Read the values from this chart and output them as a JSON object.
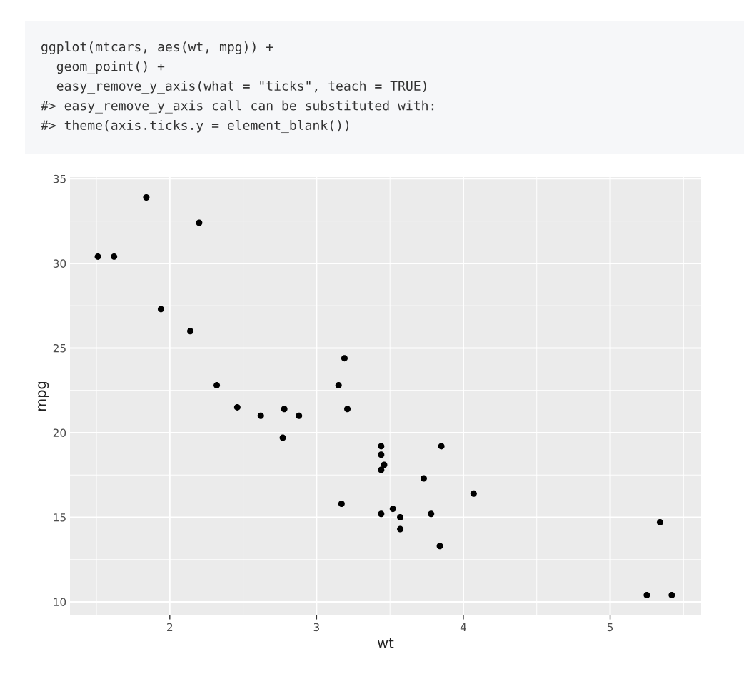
{
  "chart_data": {
    "type": "scatter",
    "xlabel": "wt",
    "ylabel": "mpg",
    "x": [
      2.62,
      2.88,
      2.32,
      3.21,
      3.44,
      3.46,
      3.57,
      3.19,
      3.15,
      3.44,
      3.44,
      4.07,
      3.73,
      3.78,
      5.25,
      5.42,
      5.34,
      2.2,
      1.62,
      1.84,
      2.46,
      3.52,
      3.44,
      3.84,
      3.85,
      1.94,
      2.14,
      1.51,
      3.17,
      2.77,
      3.57,
      2.78
    ],
    "values": [
      21.0,
      21.0,
      22.8,
      21.4,
      18.7,
      18.1,
      14.3,
      24.4,
      22.8,
      19.2,
      17.8,
      16.4,
      17.3,
      15.2,
      10.4,
      10.4,
      14.7,
      32.4,
      30.4,
      33.9,
      21.5,
      15.5,
      15.2,
      13.3,
      19.2,
      27.3,
      26.0,
      30.4,
      15.8,
      19.7,
      15.0,
      21.4
    ],
    "color": "#000000",
    "marker": "circle",
    "xlim": [
      1.32,
      5.62
    ],
    "ylim": [
      9.2,
      35.1
    ],
    "xticks": [
      2,
      3,
      4,
      5
    ],
    "yticks": [
      10,
      15,
      20,
      25,
      30,
      35
    ],
    "grid": true,
    "annotations": [
      "ggplot(mtcars, aes(wt, mpg)) +",
      "  geom_point() +",
      "  easy_remove_y_axis(what = \"ticks\", teach = TRUE)",
      "#> easy_remove_y_axis call can be substituted with:",
      "#> theme(axis.ticks.y = element_blank())"
    ]
  }
}
